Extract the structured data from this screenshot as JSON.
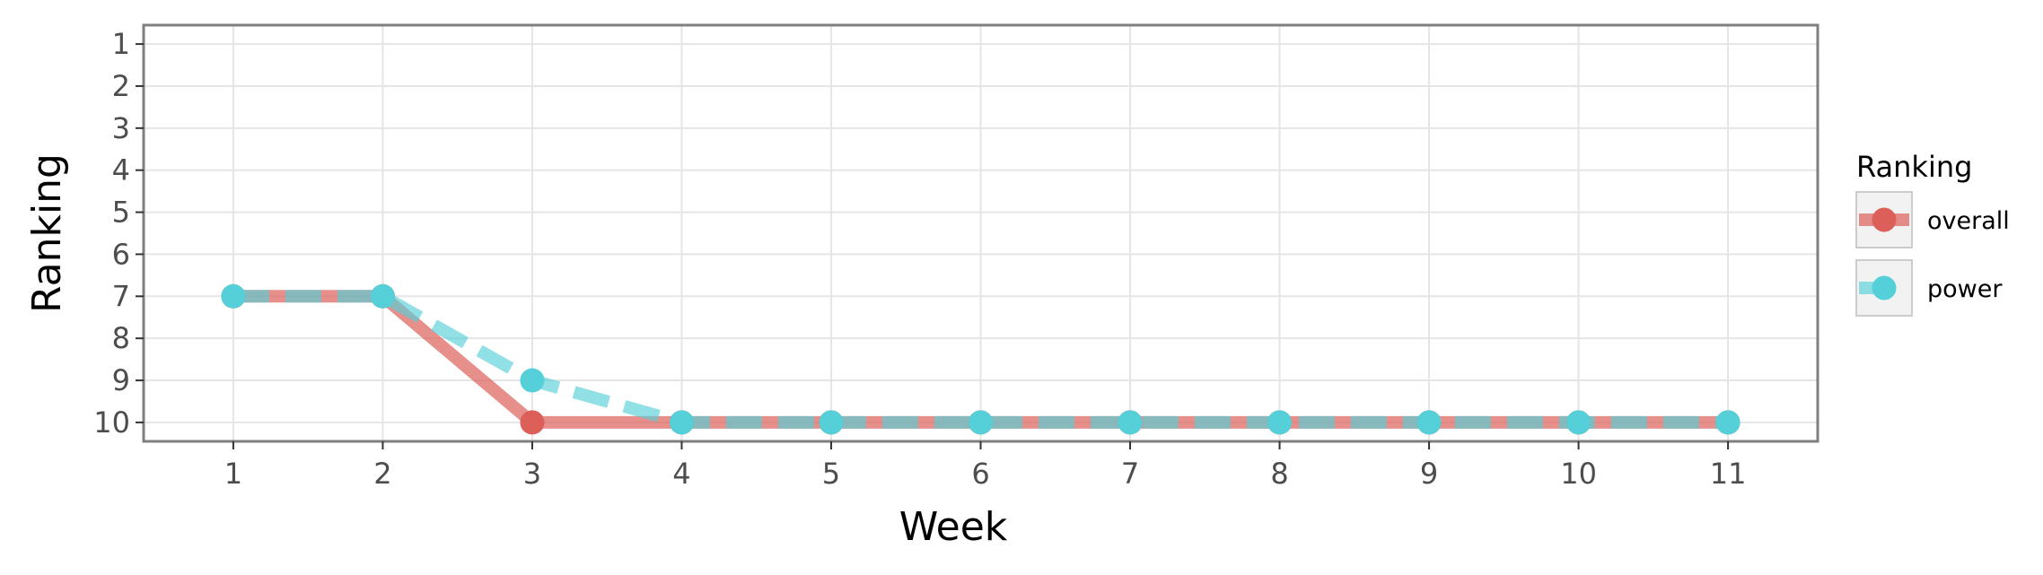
{
  "chart_data": {
    "type": "line",
    "xlabel": "Week",
    "ylabel": "Ranking",
    "x": [
      1,
      2,
      3,
      4,
      5,
      6,
      7,
      8,
      9,
      10,
      11
    ],
    "x_ticks": [
      "1",
      "2",
      "3",
      "4",
      "5",
      "6",
      "7",
      "8",
      "9",
      "10",
      "11"
    ],
    "y_ticks": [
      "1",
      "2",
      "3",
      "4",
      "5",
      "6",
      "7",
      "8",
      "9",
      "10"
    ],
    "xlim": [
      0.4,
      11.6
    ],
    "ylim": [
      10.45,
      0.55
    ],
    "y_reversed": true,
    "grid": true,
    "legend": {
      "title": "Ranking",
      "placement": "right"
    },
    "series": [
      {
        "name": "overall",
        "color": "#dc5f5a",
        "line_style": "solid",
        "values": [
          7,
          7,
          10,
          10,
          10,
          10,
          10,
          10,
          10,
          10,
          10
        ]
      },
      {
        "name": "power",
        "color": "#55d0d8",
        "line_style": "dashed",
        "values": [
          7,
          7,
          9,
          10,
          10,
          10,
          10,
          10,
          10,
          10,
          10
        ]
      }
    ]
  }
}
